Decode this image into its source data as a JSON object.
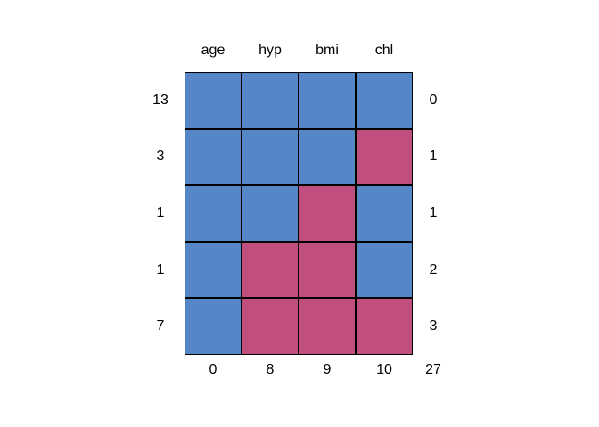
{
  "figure": {
    "background": "#ffffff",
    "columns": [
      "age",
      "hyp",
      "bmi",
      "chl"
    ],
    "rows": [
      {
        "count": "13",
        "pattern": [
          1,
          1,
          1,
          1
        ],
        "missing_count": "0"
      },
      {
        "count": "3",
        "pattern": [
          1,
          1,
          1,
          0
        ],
        "missing_count": "1"
      },
      {
        "count": "1",
        "pattern": [
          1,
          1,
          0,
          1
        ],
        "missing_count": "1"
      },
      {
        "count": "1",
        "pattern": [
          1,
          0,
          0,
          1
        ],
        "missing_count": "2"
      },
      {
        "count": "7",
        "pattern": [
          1,
          0,
          0,
          0
        ],
        "missing_count": "3"
      }
    ],
    "column_missing_counts": [
      "0",
      "8",
      "9",
      "10"
    ],
    "total_missing_label": "27",
    "colors": {
      "observed": "#5586C7",
      "missing": "#C14F7E",
      "grid_line": "#000000",
      "text": "#000000"
    }
  },
  "chart_data": {
    "type": "heatmap",
    "title": "",
    "xlabel": "",
    "ylabel": "",
    "columns": [
      "age",
      "hyp",
      "bmi",
      "chl"
    ],
    "row_pattern_counts": [
      13,
      3,
      1,
      1,
      7
    ],
    "pattern_matrix": [
      [
        1,
        1,
        1,
        1
      ],
      [
        1,
        1,
        1,
        0
      ],
      [
        1,
        1,
        0,
        1
      ],
      [
        1,
        0,
        0,
        1
      ],
      [
        1,
        0,
        0,
        0
      ]
    ],
    "missing_per_row_pattern": [
      0,
      1,
      1,
      2,
      3
    ],
    "missing_per_column": [
      0,
      8,
      9,
      10
    ],
    "total_missing": 27,
    "cell_encoding": "1 = observed (blue #5586C7), 0 = missing (red #C14F7E)",
    "grid": "black cell borders, no axes",
    "legend_position": "none"
  }
}
